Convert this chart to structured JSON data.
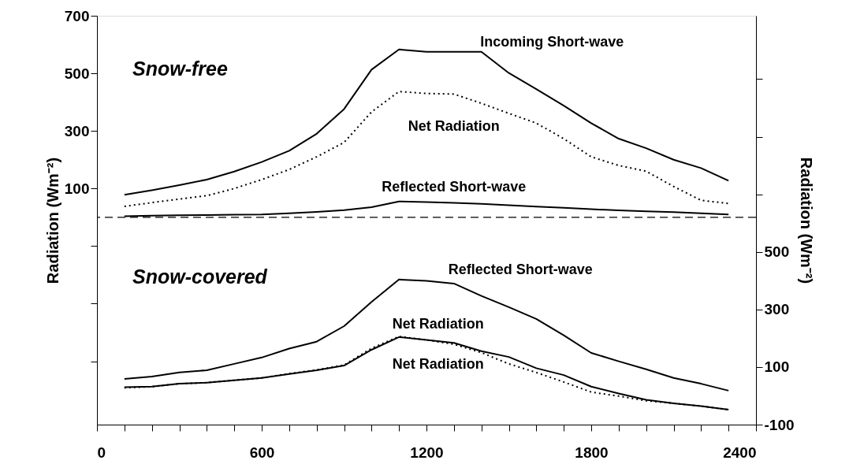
{
  "chart_data": {
    "type": "line",
    "ylabel": "Radiation (Wm⁻²)",
    "y2label": "Radiation (Wm⁻²)",
    "annotations": [
      "Snow-free",
      "Snow-covered"
    ],
    "x": [
      100,
      200,
      300,
      400,
      500,
      600,
      700,
      800,
      900,
      1000,
      1100,
      1200,
      1300,
      1400,
      1500,
      1600,
      1700,
      1800,
      1900,
      2000,
      2100,
      2200,
      2300
    ],
    "series": [
      {
        "name": "Incoming Short-wave",
        "color": "#000000",
        "line_style": "solid",
        "values": [
          78,
          94,
          112,
          131,
          159,
          192,
          231,
          290,
          376,
          513,
          583,
          575,
          575,
          575,
          501,
          445,
          388,
          327,
          273,
          240,
          200,
          171,
          127
        ]
      },
      {
        "name": "Net Radiation",
        "color": "#000000",
        "line_style": "dotted",
        "values": [
          38,
          51,
          63,
          75,
          100,
          131,
          166,
          210,
          260,
          366,
          437,
          430,
          428,
          396,
          361,
          327,
          273,
          210,
          180,
          160,
          107,
          59,
          48
        ]
      },
      {
        "name": "Reflected Short-wave",
        "color": "#000000",
        "line_style": "solid",
        "values": [
          4,
          6,
          7,
          8,
          9,
          10,
          14,
          19,
          25,
          35,
          55,
          53,
          50,
          47,
          42,
          37,
          33,
          28,
          24,
          21,
          18,
          14,
          10
        ]
      },
      {
        "name": "Reflected Short-wave",
        "color": "#000000",
        "line_style": "solid",
        "axis": "y2",
        "values": [
          59,
          67,
          81,
          89,
          111,
          133,
          164,
          188,
          242,
          326,
          404,
          399,
          390,
          347,
          308,
          267,
          210,
          149,
          120,
          92,
          62,
          42,
          18
        ]
      },
      {
        "name": "Net Radiation",
        "color": "#000000",
        "line_style": "solid",
        "axis": "y2",
        "values": [
          30,
          32,
          42,
          46,
          54,
          62,
          76,
          89,
          105,
          160,
          204,
          194,
          184,
          155,
          135,
          96,
          72,
          32,
          8,
          -14,
          -26,
          -36,
          -48
        ]
      },
      {
        "name": "Net Radiation",
        "color": "#000000",
        "line_style": "dotted",
        "axis": "y2",
        "values": [
          28,
          32,
          42,
          46,
          54,
          62,
          77,
          90,
          107,
          165,
          206,
          194,
          179,
          150,
          111,
          81,
          48,
          13,
          -1,
          -17,
          -26,
          -36,
          -48
        ]
      }
    ],
    "xlim": [
      0,
      2400
    ],
    "xticks": [
      0,
      {
        "value": 100,
        "label": null
      },
      {
        "value": 200,
        "label": null
      },
      {
        "value": 300,
        "label": null
      },
      {
        "value": 400,
        "label": null
      },
      {
        "value": 500,
        "label": null
      },
      600,
      {
        "value": 700,
        "label": null
      },
      {
        "value": 800,
        "label": null
      },
      {
        "value": 900,
        "label": null
      },
      {
        "value": 1000,
        "label": null
      },
      {
        "value": 1100,
        "label": null
      },
      1200,
      {
        "value": 1300,
        "label": null
      },
      {
        "value": 1400,
        "label": null
      },
      {
        "value": 1500,
        "label": null
      },
      {
        "value": 1600,
        "label": null
      },
      {
        "value": 1700,
        "label": null
      },
      1800,
      {
        "value": 1900,
        "label": null
      },
      {
        "value": 2000,
        "label": null
      },
      {
        "value": 2100,
        "label": null
      },
      {
        "value": 2200,
        "label": null
      },
      {
        "value": 2300,
        "label": null
      },
      2400
    ],
    "ylim": [
      -720,
      700
    ],
    "yticks": [
      {
        "value": -500,
        "label": null
      },
      {
        "value": -300,
        "label": null
      },
      {
        "value": -100,
        "label": null
      },
      100,
      300,
      500,
      700
    ],
    "y2lim": [
      -100,
      1320
    ],
    "y2ticks": [
      -100,
      100,
      300,
      500,
      {
        "value": 700,
        "label": null
      },
      {
        "value": 900,
        "label": null
      },
      {
        "value": 1100,
        "label": null
      }
    ],
    "ref_lines": [
      {
        "axis": "y",
        "value": 0,
        "color": "#000000",
        "line_style": "dashed"
      }
    ],
    "grid": false,
    "marker": "none"
  }
}
